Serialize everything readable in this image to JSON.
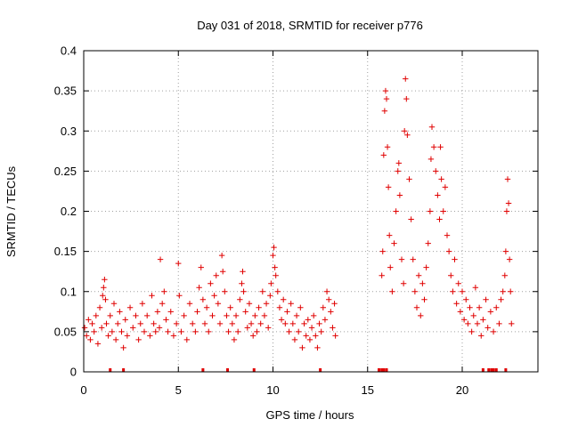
{
  "chart_data": {
    "type": "scatter",
    "title": "Day 031 of 2018, SRMTID for receiver p776",
    "xlabel": "GPS time / hours",
    "ylabel": "SRMTID / TECUs",
    "xlim": [
      0,
      24
    ],
    "ylim": [
      0,
      0.4
    ],
    "grid": true,
    "marker": "+",
    "color": "#e00000",
    "x_ticks": [
      {
        "value": 0,
        "label": "0"
      },
      {
        "value": 5,
        "label": "5"
      },
      {
        "value": 10,
        "label": "10"
      },
      {
        "value": 15,
        "label": "15"
      },
      {
        "value": 20,
        "label": "20"
      }
    ],
    "y_ticks": [
      {
        "value": 0,
        "label": "0"
      },
      {
        "value": 0.05,
        "label": "0.05"
      },
      {
        "value": 0.1,
        "label": "0.1"
      },
      {
        "value": 0.15,
        "label": "0.15"
      },
      {
        "value": 0.2,
        "label": "0.2"
      },
      {
        "value": 0.25,
        "label": "0.25"
      },
      {
        "value": 0.3,
        "label": "0.3"
      },
      {
        "value": 0.35,
        "label": "0.35"
      },
      {
        "value": 0.4,
        "label": "0.4"
      }
    ],
    "series": [
      {
        "name": "SRMTID",
        "points": [
          [
            0.05,
            0.055
          ],
          [
            0.15,
            0.045
          ],
          [
            0.25,
            0.065
          ],
          [
            0.35,
            0.04
          ],
          [
            0.45,
            0.06
          ],
          [
            0.55,
            0.05
          ],
          [
            0.65,
            0.07
          ],
          [
            0.75,
            0.035
          ],
          [
            0.85,
            0.08
          ],
          [
            0.95,
            0.055
          ],
          [
            1.0,
            0.095
          ],
          [
            1.05,
            0.105
          ],
          [
            1.1,
            0.115
          ],
          [
            1.15,
            0.09
          ],
          [
            1.2,
            0.06
          ],
          [
            1.3,
            0.045
          ],
          [
            1.4,
            0.07
          ],
          [
            1.5,
            0.05
          ],
          [
            1.6,
            0.085
          ],
          [
            1.7,
            0.04
          ],
          [
            1.8,
            0.06
          ],
          [
            1.9,
            0.075
          ],
          [
            2.0,
            0.05
          ],
          [
            2.1,
            0.03
          ],
          [
            2.2,
            0.065
          ],
          [
            2.3,
            0.045
          ],
          [
            2.45,
            0.08
          ],
          [
            2.6,
            0.055
          ],
          [
            2.75,
            0.07
          ],
          [
            2.9,
            0.04
          ],
          [
            3.0,
            0.06
          ],
          [
            3.1,
            0.085
          ],
          [
            3.2,
            0.05
          ],
          [
            3.35,
            0.07
          ],
          [
            3.5,
            0.045
          ],
          [
            3.6,
            0.095
          ],
          [
            3.7,
            0.06
          ],
          [
            3.8,
            0.05
          ],
          [
            3.9,
            0.075
          ],
          [
            4.0,
            0.055
          ],
          [
            4.05,
            0.14
          ],
          [
            4.15,
            0.085
          ],
          [
            4.25,
            0.1
          ],
          [
            4.35,
            0.065
          ],
          [
            4.45,
            0.05
          ],
          [
            4.6,
            0.075
          ],
          [
            4.75,
            0.045
          ],
          [
            4.9,
            0.06
          ],
          [
            5.0,
            0.135
          ],
          [
            5.05,
            0.095
          ],
          [
            5.15,
            0.05
          ],
          [
            5.3,
            0.07
          ],
          [
            5.45,
            0.04
          ],
          [
            5.6,
            0.085
          ],
          [
            5.75,
            0.06
          ],
          [
            5.9,
            0.05
          ],
          [
            6.0,
            0.075
          ],
          [
            6.1,
            0.105
          ],
          [
            6.2,
            0.13
          ],
          [
            6.3,
            0.09
          ],
          [
            6.4,
            0.06
          ],
          [
            6.5,
            0.08
          ],
          [
            6.6,
            0.05
          ],
          [
            6.7,
            0.11
          ],
          [
            6.8,
            0.07
          ],
          [
            6.9,
            0.095
          ],
          [
            7.0,
            0.12
          ],
          [
            7.1,
            0.085
          ],
          [
            7.2,
            0.06
          ],
          [
            7.3,
            0.145
          ],
          [
            7.35,
            0.125
          ],
          [
            7.45,
            0.1
          ],
          [
            7.55,
            0.07
          ],
          [
            7.65,
            0.05
          ],
          [
            7.75,
            0.08
          ],
          [
            7.85,
            0.06
          ],
          [
            7.95,
            0.04
          ],
          [
            8.05,
            0.07
          ],
          [
            8.15,
            0.05
          ],
          [
            8.25,
            0.09
          ],
          [
            8.35,
            0.11
          ],
          [
            8.4,
            0.125
          ],
          [
            8.45,
            0.1
          ],
          [
            8.55,
            0.075
          ],
          [
            8.65,
            0.055
          ],
          [
            8.75,
            0.085
          ],
          [
            8.85,
            0.06
          ],
          [
            8.95,
            0.045
          ],
          [
            9.05,
            0.07
          ],
          [
            9.15,
            0.05
          ],
          [
            9.25,
            0.08
          ],
          [
            9.35,
            0.06
          ],
          [
            9.45,
            0.1
          ],
          [
            9.55,
            0.07
          ],
          [
            9.65,
            0.085
          ],
          [
            9.75,
            0.055
          ],
          [
            9.85,
            0.095
          ],
          [
            9.9,
            0.11
          ],
          [
            10.0,
            0.145
          ],
          [
            10.05,
            0.155
          ],
          [
            10.1,
            0.13
          ],
          [
            10.15,
            0.12
          ],
          [
            10.25,
            0.1
          ],
          [
            10.35,
            0.08
          ],
          [
            10.45,
            0.065
          ],
          [
            10.55,
            0.09
          ],
          [
            10.65,
            0.06
          ],
          [
            10.75,
            0.075
          ],
          [
            10.85,
            0.05
          ],
          [
            10.95,
            0.085
          ],
          [
            11.05,
            0.06
          ],
          [
            11.15,
            0.04
          ],
          [
            11.25,
            0.07
          ],
          [
            11.35,
            0.05
          ],
          [
            11.45,
            0.08
          ],
          [
            11.55,
            0.03
          ],
          [
            11.65,
            0.06
          ],
          [
            11.75,
            0.045
          ],
          [
            11.85,
            0.065
          ],
          [
            11.95,
            0.04
          ],
          [
            12.05,
            0.055
          ],
          [
            12.15,
            0.07
          ],
          [
            12.25,
            0.045
          ],
          [
            12.35,
            0.03
          ],
          [
            12.45,
            0.06
          ],
          [
            12.55,
            0.05
          ],
          [
            12.65,
            0.08
          ],
          [
            12.75,
            0.065
          ],
          [
            12.85,
            0.1
          ],
          [
            12.95,
            0.09
          ],
          [
            13.05,
            0.075
          ],
          [
            13.15,
            0.055
          ],
          [
            13.25,
            0.085
          ],
          [
            13.3,
            0.045
          ],
          [
            15.75,
            0.12
          ],
          [
            15.8,
            0.15
          ],
          [
            15.85,
            0.27
          ],
          [
            15.9,
            0.325
          ],
          [
            15.95,
            0.35
          ],
          [
            16.0,
            0.34
          ],
          [
            16.05,
            0.28
          ],
          [
            16.1,
            0.23
          ],
          [
            16.15,
            0.17
          ],
          [
            16.2,
            0.13
          ],
          [
            16.3,
            0.1
          ],
          [
            16.4,
            0.16
          ],
          [
            16.5,
            0.2
          ],
          [
            16.6,
            0.25
          ],
          [
            16.65,
            0.26
          ],
          [
            16.7,
            0.22
          ],
          [
            16.8,
            0.14
          ],
          [
            16.9,
            0.11
          ],
          [
            16.95,
            0.3
          ],
          [
            17.0,
            0.365
          ],
          [
            17.05,
            0.34
          ],
          [
            17.1,
            0.295
          ],
          [
            17.2,
            0.24
          ],
          [
            17.3,
            0.19
          ],
          [
            17.4,
            0.14
          ],
          [
            17.5,
            0.1
          ],
          [
            17.6,
            0.08
          ],
          [
            17.7,
            0.12
          ],
          [
            17.8,
            0.07
          ],
          [
            17.9,
            0.11
          ],
          [
            18.0,
            0.09
          ],
          [
            18.1,
            0.13
          ],
          [
            18.2,
            0.16
          ],
          [
            18.3,
            0.2
          ],
          [
            18.35,
            0.265
          ],
          [
            18.4,
            0.305
          ],
          [
            18.5,
            0.28
          ],
          [
            18.6,
            0.25
          ],
          [
            18.7,
            0.22
          ],
          [
            18.8,
            0.19
          ],
          [
            18.85,
            0.28
          ],
          [
            18.9,
            0.24
          ],
          [
            19.0,
            0.2
          ],
          [
            19.1,
            0.23
          ],
          [
            19.2,
            0.17
          ],
          [
            19.3,
            0.15
          ],
          [
            19.4,
            0.12
          ],
          [
            19.5,
            0.1
          ],
          [
            19.6,
            0.14
          ],
          [
            19.7,
            0.085
          ],
          [
            19.8,
            0.11
          ],
          [
            19.9,
            0.075
          ],
          [
            20.0,
            0.1
          ],
          [
            20.1,
            0.065
          ],
          [
            20.2,
            0.09
          ],
          [
            20.3,
            0.06
          ],
          [
            20.4,
            0.08
          ],
          [
            20.5,
            0.05
          ],
          [
            20.6,
            0.07
          ],
          [
            20.7,
            0.105
          ],
          [
            20.8,
            0.06
          ],
          [
            20.9,
            0.08
          ],
          [
            21.0,
            0.045
          ],
          [
            21.1,
            0.065
          ],
          [
            21.25,
            0.09
          ],
          [
            21.35,
            0.055
          ],
          [
            21.5,
            0.075
          ],
          [
            21.65,
            0.05
          ],
          [
            21.8,
            0.08
          ],
          [
            21.95,
            0.06
          ],
          [
            22.05,
            0.09
          ],
          [
            22.15,
            0.1
          ],
          [
            22.25,
            0.12
          ],
          [
            22.3,
            0.15
          ],
          [
            22.35,
            0.2
          ],
          [
            22.4,
            0.24
          ],
          [
            22.45,
            0.21
          ],
          [
            22.5,
            0.14
          ],
          [
            22.55,
            0.1
          ],
          [
            22.6,
            0.06
          ]
        ]
      }
    ],
    "lock_lines_x": [
      1.4,
      2.1,
      6.3,
      7.6,
      9.0,
      12.5,
      15.6,
      15.75,
      15.85,
      16.0,
      21.1,
      21.4,
      21.55,
      21.65,
      21.8,
      22.3
    ]
  }
}
